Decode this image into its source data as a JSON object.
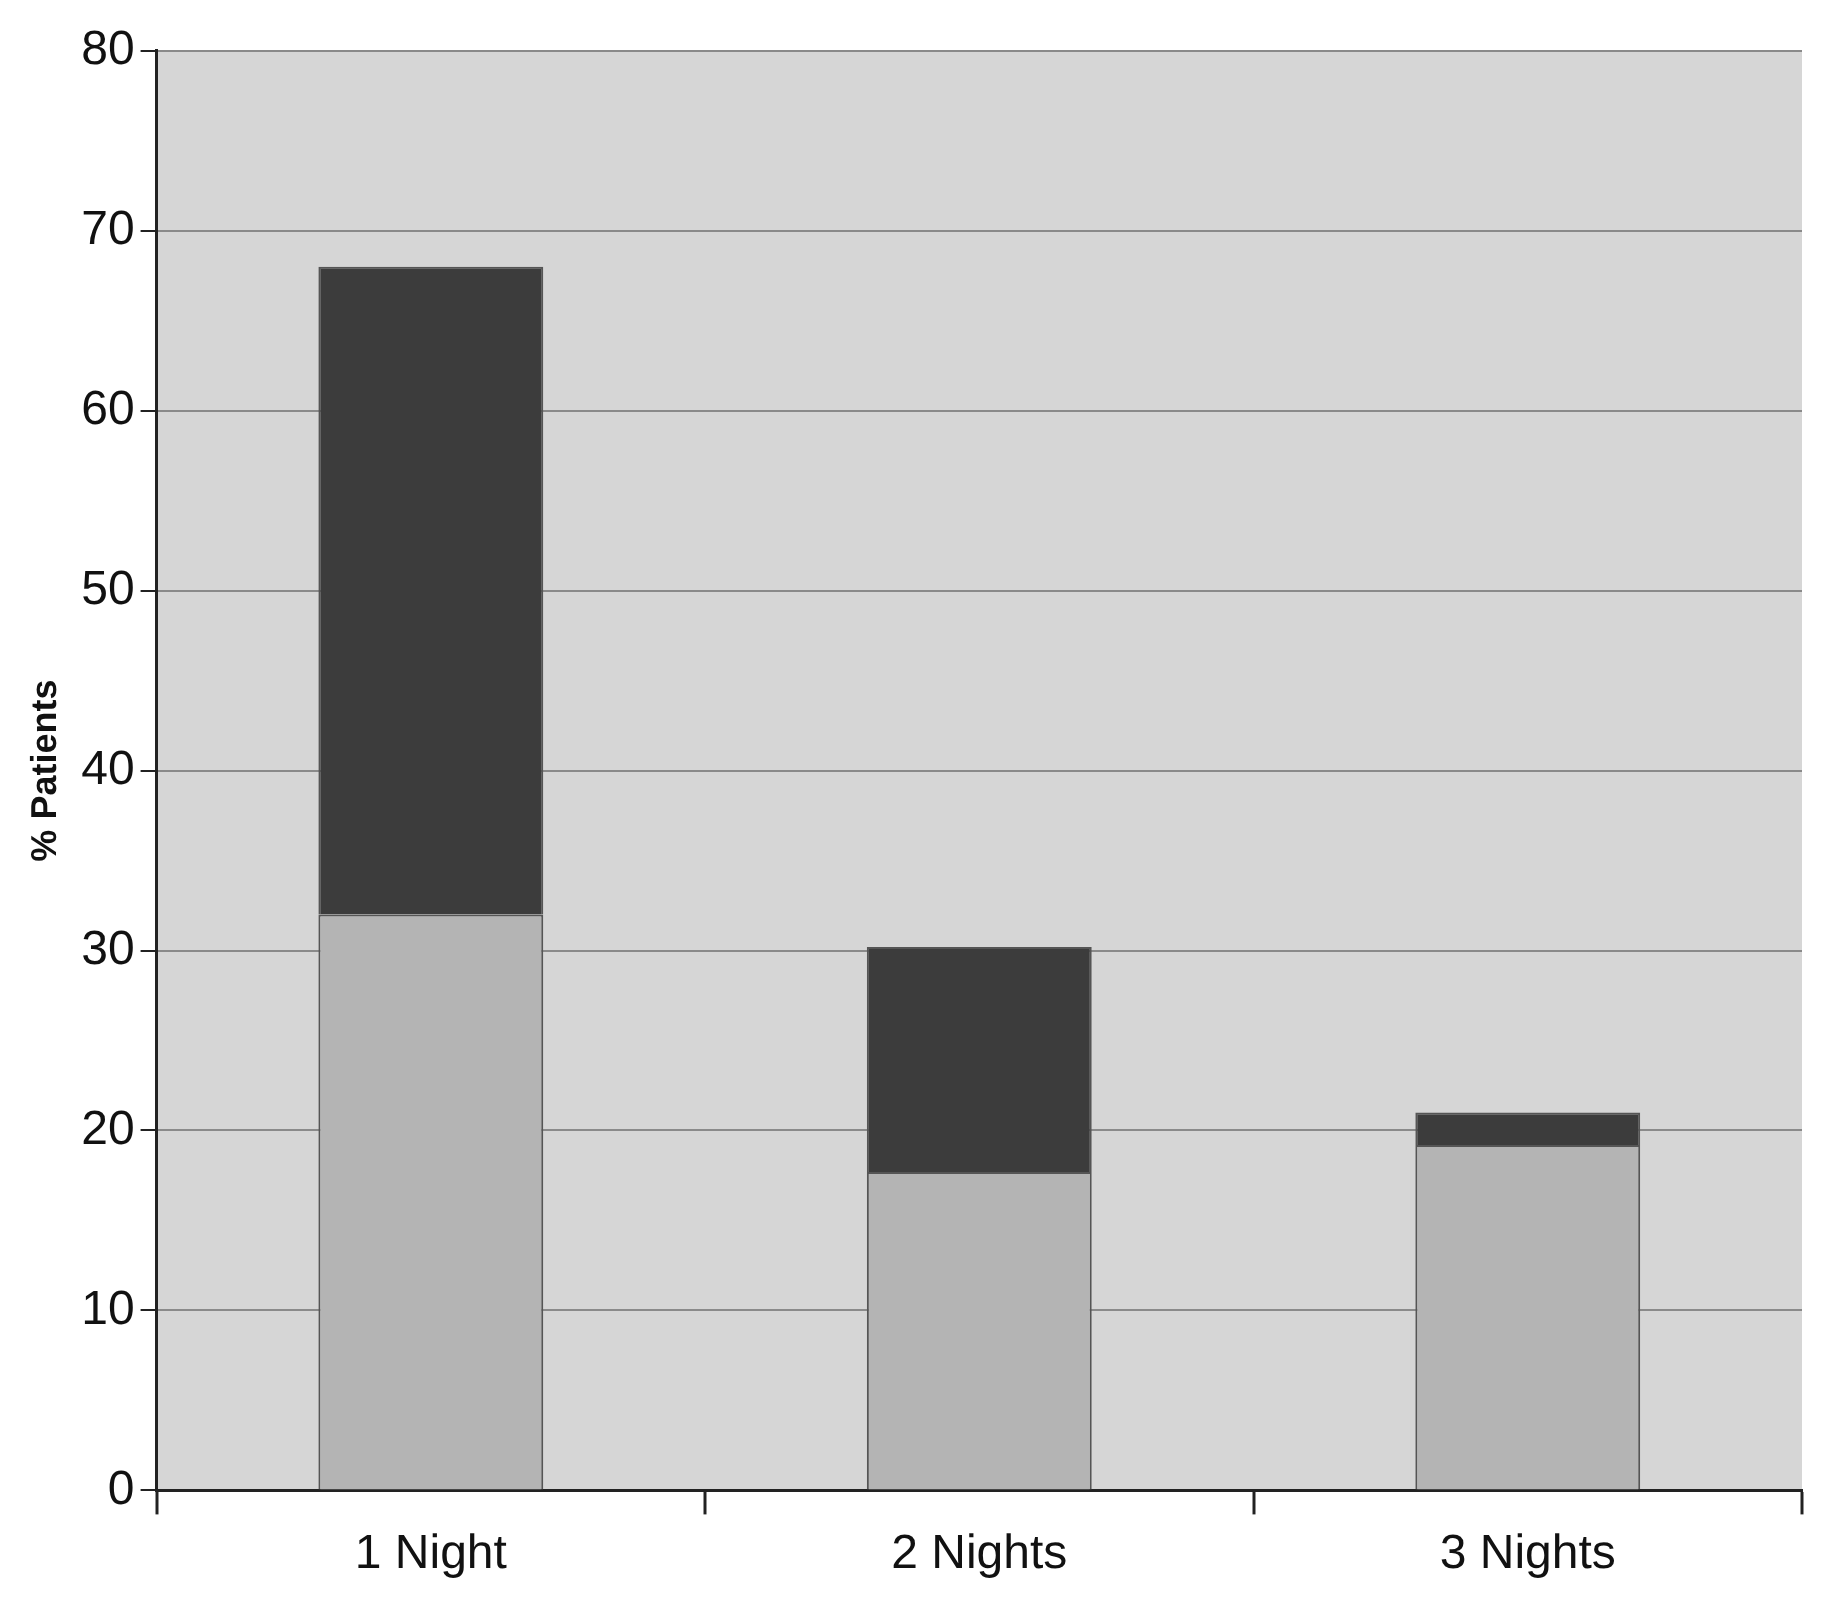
{
  "chart_data": {
    "type": "bar",
    "ylabel": "% Patients",
    "categories": [
      "1 Night",
      "2 Nights",
      "3 Nights"
    ],
    "series": [
      {
        "color": "#b4b4b4",
        "values": [
          32,
          17.7,
          19.2
        ]
      },
      {
        "color": "#3c3c3c",
        "values": [
          36,
          12.5,
          1.8
        ]
      }
    ],
    "stacked": true,
    "ylim": [
      0,
      80
    ],
    "yticks": [
      0,
      10,
      20,
      30,
      40,
      50,
      60,
      70,
      80
    ],
    "grid": "y",
    "legend": false
  }
}
